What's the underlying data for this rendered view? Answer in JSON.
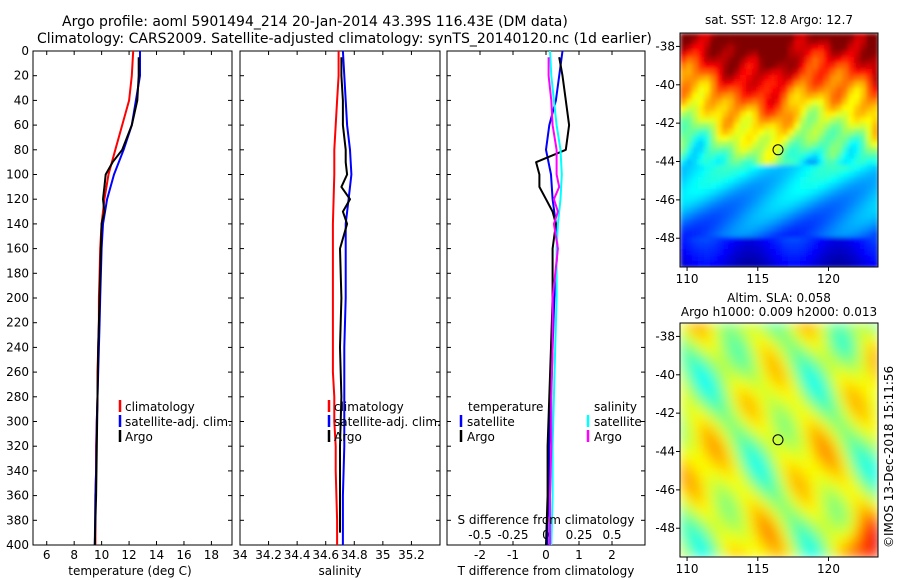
{
  "title_line1": "Argo profile: aoml 5901494_214 20-Jan-2014 43.39S 116.43E (DM data)",
  "title_line2": "Climatology: CARS2009. Satellite-adjusted climatology: synTS_20140120.nc (1d earlier)",
  "watermark": "©IMOS 13-Dec-2018 15:11:56",
  "colors": {
    "climatology": "#ff0000",
    "satellite": "#0000ff",
    "argo": "#000000",
    "salinity_satellite": "#00ffff",
    "salinity_argo": "#ff00ff"
  },
  "legend": {
    "climatology": "climatology",
    "satellite_adj": "satellite-adj. clim.",
    "argo": "Argo",
    "temperature": "temperature",
    "salinity": "salinity",
    "satellite": "satellite"
  },
  "chart_data": [
    {
      "type": "line",
      "panel": "temperature",
      "xlabel": "temperature (deg C)",
      "ylabel": "",
      "xlim": [
        5,
        19.5
      ],
      "ylim": [
        400,
        0
      ],
      "xticks": [
        6,
        8,
        10,
        12,
        14,
        16,
        18
      ],
      "yticks": [
        0,
        20,
        40,
        60,
        80,
        100,
        120,
        140,
        160,
        180,
        200,
        220,
        240,
        260,
        280,
        300,
        320,
        340,
        360,
        380,
        400
      ],
      "series": [
        {
          "name": "climatology",
          "color_key": "climatology",
          "x": [
            12.3,
            12.2,
            12.0,
            11.5,
            11.0,
            10.5,
            10.2,
            10.0,
            9.9,
            9.85,
            9.8,
            9.8,
            9.75,
            9.7,
            9.7,
            9.65,
            9.6,
            9.6,
            9.55,
            9.55
          ],
          "depth": [
            0,
            20,
            40,
            60,
            80,
            100,
            120,
            140,
            160,
            180,
            200,
            220,
            240,
            260,
            280,
            300,
            320,
            340,
            360,
            400
          ]
        },
        {
          "name": "satellite-adj. clim.",
          "color_key": "satellite",
          "x": [
            12.8,
            12.8,
            12.5,
            12.2,
            11.6,
            10.9,
            10.4,
            10.1,
            10.0,
            9.95,
            9.9,
            9.85,
            9.8,
            9.75,
            9.7,
            9.65,
            9.6,
            9.55,
            9.5
          ],
          "depth": [
            0,
            20,
            40,
            60,
            80,
            100,
            120,
            140,
            160,
            180,
            200,
            220,
            240,
            260,
            280,
            300,
            340,
            360,
            400
          ]
        },
        {
          "name": "Argo",
          "color_key": "argo",
          "x": [
            12.7,
            12.7,
            12.6,
            12.2,
            11.5,
            10.8,
            10.3,
            10.2,
            10.1,
            10.2,
            10.0,
            9.95,
            9.9,
            9.85,
            9.8,
            9.75,
            9.7,
            9.65,
            9.6,
            9.55,
            9.5
          ],
          "depth": [
            5,
            20,
            40,
            60,
            80,
            90,
            100,
            110,
            120,
            130,
            140,
            160,
            180,
            200,
            220,
            240,
            280,
            320,
            360,
            380,
            400
          ]
        }
      ]
    },
    {
      "type": "line",
      "panel": "salinity",
      "xlabel": "salinity",
      "ylabel": "",
      "xlim": [
        34.0,
        35.4
      ],
      "ylim": [
        400,
        0
      ],
      "xticks": [
        34,
        34.2,
        34.4,
        34.6,
        34.8,
        35,
        35.2
      ],
      "xtick_labels": [
        "34",
        "34.2",
        "34.4",
        "34.6",
        "34.8",
        "35",
        "35.2"
      ],
      "series": [
        {
          "name": "climatology",
          "color_key": "climatology",
          "x": [
            34.69,
            34.69,
            34.68,
            34.67,
            34.66,
            34.66,
            34.65,
            34.65,
            34.65,
            34.65,
            34.66,
            34.66,
            34.67,
            34.67,
            34.68,
            34.68
          ],
          "depth": [
            0,
            20,
            40,
            60,
            80,
            100,
            140,
            180,
            220,
            260,
            280,
            300,
            320,
            340,
            380,
            400
          ]
        },
        {
          "name": "satellite-adj. clim.",
          "color_key": "satellite",
          "x": [
            34.72,
            34.73,
            34.74,
            34.75,
            34.77,
            34.78,
            34.76,
            34.74,
            34.74,
            34.74,
            34.73,
            34.73,
            34.73,
            34.72,
            34.72
          ],
          "depth": [
            0,
            20,
            40,
            60,
            80,
            100,
            120,
            140,
            160,
            200,
            240,
            280,
            320,
            360,
            400
          ]
        },
        {
          "name": "Argo",
          "color_key": "argo",
          "x": [
            34.71,
            34.71,
            34.72,
            34.72,
            34.74,
            34.74,
            34.75,
            34.71,
            34.77,
            34.72,
            34.75,
            34.7,
            34.71,
            34.7,
            34.71,
            34.7,
            34.7,
            34.7
          ],
          "depth": [
            5,
            20,
            40,
            60,
            80,
            90,
            100,
            110,
            120,
            130,
            140,
            160,
            200,
            240,
            280,
            320,
            360,
            390
          ]
        }
      ]
    },
    {
      "type": "line",
      "panel": "differences",
      "xlabel": "T difference from climatology",
      "xlabel_top": "S difference from climatology",
      "xlim": [
        -3,
        3
      ],
      "xlim_salinity": [
        -0.75,
        0.75
      ],
      "ylim": [
        400,
        0
      ],
      "xticks": [
        -2,
        -1,
        0,
        1,
        2
      ],
      "xticks_salinity": [
        "-0.5",
        "-0.25",
        "0",
        "0.25",
        "0.5"
      ],
      "series": [
        {
          "name": "temperature satellite",
          "color_key": "satellite",
          "axis": "T",
          "x": [
            0.5,
            0.4,
            0.3,
            0.1,
            0.0,
            0.15,
            0.2,
            0.3,
            0.35,
            0.3,
            0.25,
            0.2,
            0.15,
            0.1,
            0.1,
            0.05,
            0.05
          ],
          "depth": [
            0,
            20,
            40,
            60,
            80,
            100,
            120,
            140,
            160,
            180,
            200,
            240,
            280,
            320,
            360,
            380,
            400
          ]
        },
        {
          "name": "temperature Argo",
          "color_key": "argo",
          "axis": "T",
          "x": [
            0.4,
            0.5,
            0.6,
            0.7,
            0.6,
            -0.3,
            -0.2,
            -0.2,
            0.0,
            0.2,
            0.3,
            0.2,
            0.2,
            0.15,
            0.1,
            0.05,
            0.05,
            0.0
          ],
          "depth": [
            5,
            20,
            40,
            60,
            80,
            90,
            100,
            110,
            120,
            130,
            140,
            160,
            200,
            240,
            280,
            320,
            360,
            400
          ]
        },
        {
          "name": "salinity satellite",
          "color_key": "salinity_satellite",
          "axis": "S",
          "x": [
            0.03,
            0.04,
            0.06,
            0.08,
            0.11,
            0.12,
            0.11,
            0.09,
            0.08,
            0.08,
            0.07,
            0.06,
            0.05,
            0.05,
            0.04
          ],
          "depth": [
            0,
            20,
            40,
            60,
            80,
            100,
            120,
            140,
            160,
            200,
            240,
            280,
            320,
            360,
            400
          ]
        },
        {
          "name": "salinity Argo",
          "color_key": "salinity_argo",
          "axis": "S",
          "x": [
            0.02,
            0.02,
            0.04,
            0.05,
            0.08,
            0.08,
            0.1,
            0.06,
            0.09,
            0.06,
            0.09,
            0.05,
            0.05,
            0.04,
            0.04,
            0.03,
            0.03
          ],
          "depth": [
            5,
            20,
            40,
            60,
            80,
            100,
            110,
            120,
            130,
            140,
            160,
            200,
            240,
            280,
            320,
            360,
            400
          ]
        }
      ]
    },
    {
      "type": "heatmap",
      "panel": "sst_map",
      "title": "sat. SST: 12.8 Argo: 12.7",
      "xlim": [
        109.5,
        123.5
      ],
      "ylim": [
        -49.5,
        -37.3
      ],
      "xticks": [
        110,
        115,
        120
      ],
      "yticks": [
        -38,
        -40,
        -42,
        -44,
        -46,
        -48
      ],
      "marker": {
        "lon": 116.43,
        "lat": -43.39
      }
    },
    {
      "type": "heatmap",
      "panel": "sla_map",
      "title": "Altim. SLA: 0.058",
      "subtitle": "Argo h1000: 0.009 h2000: 0.013",
      "xlim": [
        109.5,
        123.5
      ],
      "ylim": [
        -49.5,
        -37.3
      ],
      "xticks": [
        110,
        115,
        120
      ],
      "yticks": [
        -38,
        -40,
        -42,
        -44,
        -46,
        -48
      ],
      "marker": {
        "lon": 116.43,
        "lat": -43.39
      }
    }
  ]
}
